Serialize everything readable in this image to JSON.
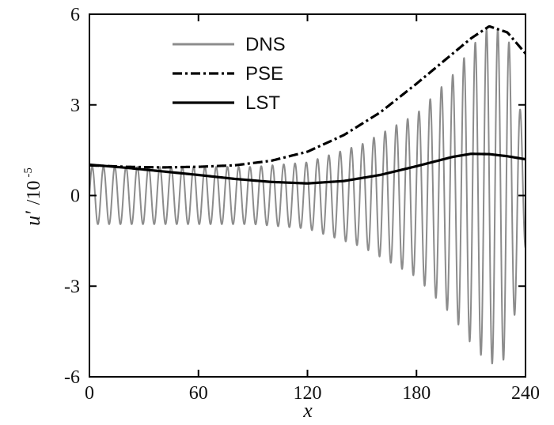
{
  "chart_data": {
    "type": "line",
    "title": "",
    "xlabel": "x",
    "ylabel": {
      "base": "u′",
      "separator": "/10",
      "exponent": "-5"
    },
    "xlim": [
      0,
      240
    ],
    "ylim": [
      -6,
      6
    ],
    "xticks": [
      0,
      60,
      120,
      180,
      240
    ],
    "yticks": [
      -6,
      -3,
      0,
      3,
      6
    ],
    "xtick_labels": [
      "0",
      "60",
      "120",
      "180",
      "240"
    ],
    "ytick_labels": [
      "-6",
      "-3",
      "0",
      "3",
      "6"
    ],
    "grid": false,
    "legend": "top-center",
    "series": [
      {
        "name": "DNS",
        "style": "oscillation",
        "color": "#8c8c8c",
        "wavelength": 6.2,
        "x": [
          0,
          30,
          60,
          90,
          120,
          150,
          180,
          200,
          210,
          220,
          230,
          240
        ],
        "upper": [
          0.95,
          0.95,
          0.95,
          0.95,
          1.1,
          1.7,
          2.7,
          4.0,
          4.9,
          5.6,
          5.4,
          1.8
        ],
        "lower": [
          -0.95,
          -0.95,
          -0.95,
          -0.95,
          -1.1,
          -1.7,
          -2.7,
          -4.0,
          -4.9,
          -5.6,
          -5.4,
          -1.8
        ]
      },
      {
        "name": "PSE",
        "style": "dash-dot",
        "color": "#000000",
        "x": [
          0,
          20,
          40,
          60,
          80,
          100,
          120,
          140,
          160,
          180,
          200,
          210,
          220,
          230,
          240
        ],
        "y": [
          1.0,
          0.95,
          0.93,
          0.95,
          1.0,
          1.15,
          1.45,
          2.0,
          2.75,
          3.7,
          4.7,
          5.2,
          5.6,
          5.4,
          4.7
        ]
      },
      {
        "name": "LST",
        "style": "solid",
        "color": "#000000",
        "x": [
          0,
          20,
          40,
          60,
          80,
          100,
          120,
          140,
          160,
          180,
          200,
          210,
          220,
          230,
          240
        ],
        "y": [
          1.02,
          0.92,
          0.8,
          0.68,
          0.55,
          0.45,
          0.4,
          0.48,
          0.68,
          0.97,
          1.28,
          1.38,
          1.37,
          1.3,
          1.2
        ]
      }
    ]
  }
}
